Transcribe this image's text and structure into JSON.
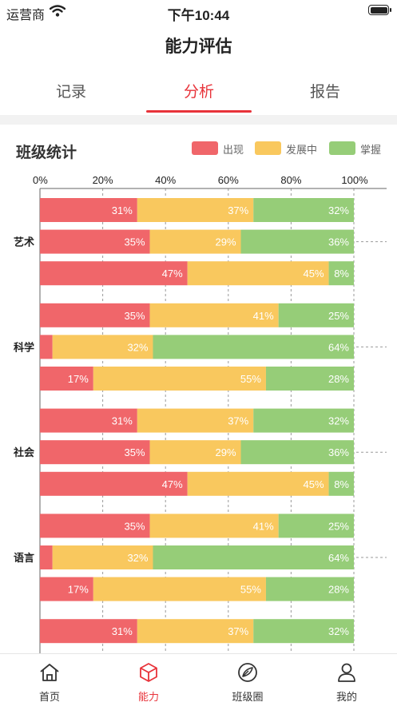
{
  "status_bar": {
    "carrier": "运营商",
    "time": "下午10:44"
  },
  "title": "能力评估",
  "tabs": [
    {
      "label": "记录",
      "active": false
    },
    {
      "label": "分析",
      "active": true
    },
    {
      "label": "报告",
      "active": false
    }
  ],
  "card_title": "班级统计",
  "legend": [
    {
      "label": "出现",
      "color": "#f0666a"
    },
    {
      "label": "发展中",
      "color": "#f9c85e"
    },
    {
      "label": "掌握",
      "color": "#96cd78"
    }
  ],
  "accent_color": "#e8333a",
  "chart_data": {
    "type": "bar",
    "orientation": "horizontal",
    "stacked": true,
    "x_ticks": [
      "0%",
      "20%",
      "40%",
      "60%",
      "80%",
      "100%"
    ],
    "xlim": [
      0,
      100
    ],
    "grid": true,
    "legend_position": "top-right",
    "series_names": [
      "出现",
      "发展中",
      "掌握"
    ],
    "series_colors": [
      "#f0666a",
      "#f9c85e",
      "#96cd78"
    ],
    "groups": [
      {
        "category": "艺术",
        "bars": [
          {
            "values": [
              31,
              37,
              32
            ]
          },
          {
            "values": [
              35,
              29,
              36
            ]
          },
          {
            "values": [
              47,
              45,
              8
            ]
          }
        ]
      },
      {
        "category": "科学",
        "bars": [
          {
            "values": [
              35,
              41,
              25
            ]
          },
          {
            "values": [
              null,
              32,
              64
            ]
          },
          {
            "values": [
              17,
              55,
              28
            ]
          }
        ]
      },
      {
        "category": "社会",
        "bars": [
          {
            "values": [
              31,
              37,
              32
            ]
          },
          {
            "values": [
              35,
              29,
              36
            ]
          },
          {
            "values": [
              47,
              45,
              8
            ]
          }
        ]
      },
      {
        "category": "语言",
        "bars": [
          {
            "values": [
              35,
              41,
              25
            ]
          },
          {
            "values": [
              null,
              32,
              64
            ]
          },
          {
            "values": [
              17,
              55,
              28
            ]
          }
        ]
      },
      {
        "category": "",
        "bars": [
          {
            "values": [
              31,
              37,
              32
            ]
          }
        ]
      }
    ]
  },
  "tabbar": [
    {
      "label": "首页",
      "icon": "home-icon",
      "active": false
    },
    {
      "label": "能力",
      "icon": "cube-icon",
      "active": true
    },
    {
      "label": "班级圈",
      "icon": "circle-leaf-icon",
      "active": false
    },
    {
      "label": "我的",
      "icon": "user-icon",
      "active": false
    }
  ]
}
